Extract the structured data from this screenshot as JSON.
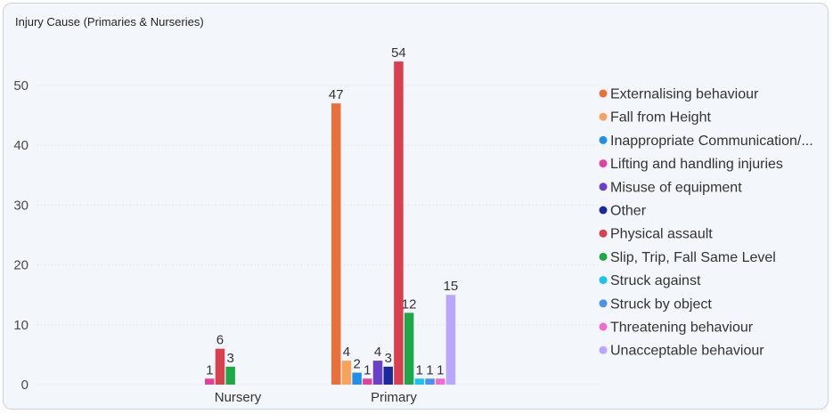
{
  "chart_data": {
    "type": "bar",
    "title": "Injury Cause (Primaries & Nurseries)",
    "categories": [
      "Nursery",
      "Primary"
    ],
    "ylim": [
      0,
      54
    ],
    "yticks": [
      0,
      10,
      20,
      30,
      40,
      50
    ],
    "grid": true,
    "legend_position": "right",
    "series": [
      {
        "name": "Externalising behaviour",
        "color": "#e8703a",
        "values": [
          null,
          47
        ]
      },
      {
        "name": "Fall from Height",
        "color": "#f7a35c",
        "values": [
          null,
          4
        ]
      },
      {
        "name": "Inappropriate Communication/...",
        "color": "#1e90e8",
        "values": [
          null,
          2
        ]
      },
      {
        "name": "Lifting and handling injuries",
        "color": "#e040a0",
        "values": [
          1,
          1
        ]
      },
      {
        "name": "Misuse of equipment",
        "color": "#6b3fc8",
        "values": [
          null,
          4
        ]
      },
      {
        "name": "Other",
        "color": "#1a2a9c",
        "values": [
          null,
          3
        ]
      },
      {
        "name": "Physical assault",
        "color": "#d9404f",
        "values": [
          6,
          54
        ]
      },
      {
        "name": "Slip, Trip, Fall Same Level",
        "color": "#1fa84a",
        "values": [
          3,
          12
        ]
      },
      {
        "name": "Struck against",
        "color": "#1cc2f0",
        "values": [
          null,
          1
        ]
      },
      {
        "name": "Struck by object",
        "color": "#4a90f0",
        "values": [
          null,
          1
        ]
      },
      {
        "name": "Threatening behaviour",
        "color": "#f06ad0",
        "values": [
          null,
          1
        ]
      },
      {
        "name": "Unacceptable behaviour",
        "color": "#b8a6ff",
        "values": [
          null,
          15
        ]
      }
    ]
  }
}
